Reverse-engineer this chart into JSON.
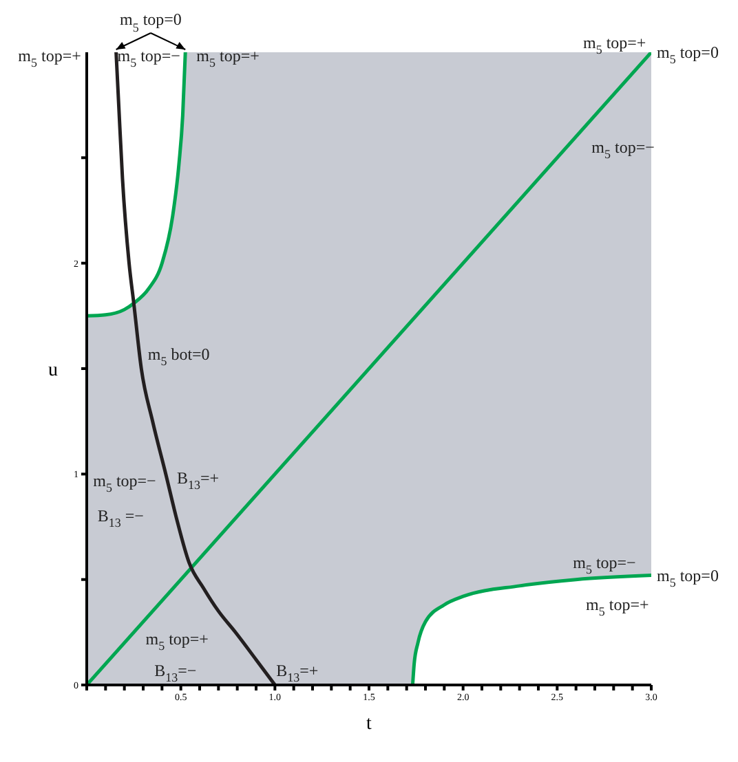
{
  "chart_data": {
    "type": "line",
    "xlabel": "t",
    "ylabel": "u",
    "xlim": [
      0,
      3
    ],
    "ylim": [
      0,
      3
    ],
    "xticks": [
      {
        "value": 0,
        "label": null
      },
      {
        "value": 0.1,
        "label": null
      },
      {
        "value": 0.2,
        "label": null
      },
      {
        "value": 0.3,
        "label": null
      },
      {
        "value": 0.4,
        "label": null
      },
      0.5,
      {
        "value": 0.6,
        "label": null
      },
      {
        "value": 0.7,
        "label": null
      },
      {
        "value": 0.8,
        "label": null
      },
      {
        "value": 0.9,
        "label": null
      },
      {
        "value": 1,
        "label": "1.0"
      },
      {
        "value": 1.1,
        "label": null
      },
      {
        "value": 1.2,
        "label": null
      },
      {
        "value": 1.3,
        "label": null
      },
      {
        "value": 1.4,
        "label": null
      },
      1.5,
      {
        "value": 1.6,
        "label": null
      },
      {
        "value": 1.7,
        "label": null
      },
      {
        "value": 1.8,
        "label": null
      },
      {
        "value": 1.9,
        "label": null
      },
      {
        "value": 2,
        "label": "2.0"
      },
      {
        "value": 2.1,
        "label": null
      },
      {
        "value": 2.2,
        "label": null
      },
      {
        "value": 2.3,
        "label": null
      },
      {
        "value": 2.4,
        "label": null
      },
      2.5,
      {
        "value": 2.6,
        "label": null
      },
      {
        "value": 2.7,
        "label": null
      },
      {
        "value": 2.8,
        "label": null
      },
      {
        "value": 2.9,
        "label": null
      },
      {
        "value": 3,
        "label": "3.0"
      }
    ],
    "yticks": [
      0,
      {
        "value": 0.5,
        "label": null
      },
      1,
      {
        "value": 1.5,
        "label": null
      },
      2,
      {
        "value": 2.5,
        "label": null
      }
    ],
    "marker": "none",
    "line_style": "solid",
    "series": [
      {
        "color": "#00a651",
        "x": [
          0,
          3
        ],
        "values": [
          0,
          3
        ]
      },
      {
        "color": "#00a651",
        "x": [
          0,
          0.1,
          0.2,
          0.25,
          0.33,
          0.4,
          0.456,
          0.49,
          0.51,
          0.524
        ],
        "values": [
          1.75,
          1.755,
          1.78,
          1.81,
          1.88,
          2.0,
          2.22,
          2.47,
          2.7,
          3.0
        ]
      },
      {
        "color": "#231f20",
        "x": [
          0.156,
          0.17,
          0.19,
          0.225,
          0.25,
          0.29,
          0.35,
          0.42,
          0.48,
          0.544,
          0.62,
          0.7,
          0.79,
          0.9,
          1.0
        ],
        "values": [
          3.0,
          2.75,
          2.4,
          2.0,
          1.81,
          1.5,
          1.25,
          1.0,
          0.78,
          0.58,
          0.46,
          0.35,
          0.25,
          0.12,
          0
        ]
      },
      {
        "color": "#00a651",
        "x": [
          1.732,
          1.74,
          1.76,
          1.8,
          1.9,
          2.0,
          2.3,
          2.6,
          3.0
        ],
        "values": [
          0,
          0.1,
          0.2,
          0.3,
          0.38,
          0.42,
          0.47,
          0.5,
          0.52
        ]
      }
    ],
    "annotations": [
      "m$_{5}$ top=0",
      "m$_{5}$ top=+",
      "m$_{5}$ top=−",
      "m$_{5}$ top=+",
      "m$_{5}$ top=+",
      "m$_{5}$ top=−",
      "m$_{5}$ top=−",
      "m$_{5}$ top=+",
      "m$_{5}$ bot=0",
      "m$_{5}$ top=−",
      "B$_{13}$=+",
      "B$_{13}$ =−",
      "m$_{5}$ top=+",
      "B$_{13}$=−",
      "B$_{13}$=+",
      {
        "text": "m$_{5}$ top=0",
        "x": 3,
        "y": 3
      },
      {
        "text": "m$_{5}$ top=0",
        "x": 3,
        "y": 0.52
      }
    ]
  }
}
